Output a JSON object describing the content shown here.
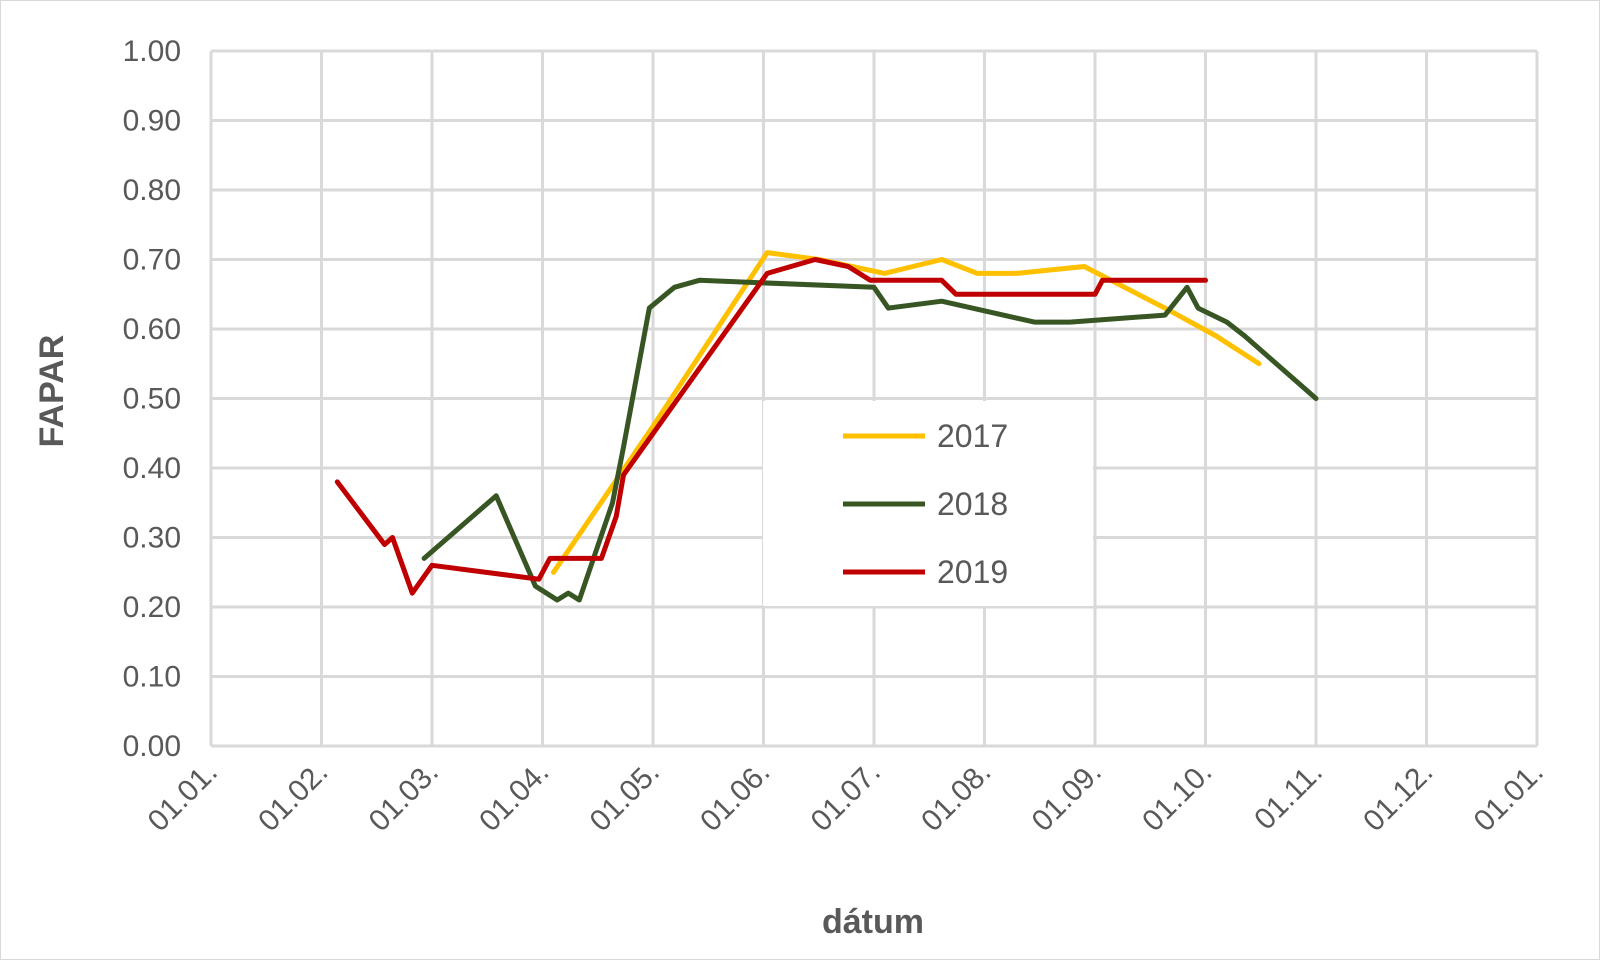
{
  "chart_data": {
    "type": "line",
    "xlabel": "dátum",
    "ylabel": "FAPAR",
    "ylim": [
      0,
      1
    ],
    "yticks": [
      "0.00",
      "0.10",
      "0.20",
      "0.30",
      "0.40",
      "0.50",
      "0.60",
      "0.70",
      "0.80",
      "0.90",
      "1.00"
    ],
    "xlim": [
      "01.01.",
      "01.01."
    ],
    "xticks": [
      "01.01.",
      "01.02.",
      "01.03.",
      "01.04.",
      "01.05.",
      "01.06.",
      "01.07.",
      "01.08.",
      "01.09.",
      "01.10.",
      "01.11.",
      "01.12.",
      "01.01."
    ],
    "grid": true,
    "legend_position": "center",
    "series": [
      {
        "name": "2017",
        "color": "#FFC000",
        "points": [
          [
            "04.04.",
            0.25
          ],
          [
            "01.05.",
            0.46
          ],
          [
            "02.06.",
            0.71
          ],
          [
            "16.06.",
            0.7
          ],
          [
            "04.07.",
            0.68
          ],
          [
            "20.07.",
            0.7
          ],
          [
            "30.07.",
            0.68
          ],
          [
            "10.08.",
            0.68
          ],
          [
            "29.08.",
            0.69
          ],
          [
            "20.09.",
            0.63
          ],
          [
            "04.10.",
            0.59
          ],
          [
            "16.10.",
            0.55
          ]
        ]
      },
      {
        "name": "2018",
        "color": "#375623",
        "points": [
          [
            "27.02.",
            0.27
          ],
          [
            "19.03.",
            0.36
          ],
          [
            "30.03.",
            0.23
          ],
          [
            "05.04.",
            0.21
          ],
          [
            "08.04.",
            0.22
          ],
          [
            "11.04.",
            0.21
          ],
          [
            "20.04.",
            0.35
          ],
          [
            "23.04.",
            0.43
          ],
          [
            "30.04.",
            0.63
          ],
          [
            "07.05.",
            0.66
          ],
          [
            "14.05.",
            0.67
          ],
          [
            "01.07.",
            0.66
          ],
          [
            "05.07.",
            0.63
          ],
          [
            "20.07.",
            0.64
          ],
          [
            "15.08.",
            0.61
          ],
          [
            "25.08.",
            0.61
          ],
          [
            "20.09.",
            0.62
          ],
          [
            "26.09.",
            0.66
          ],
          [
            "29.09.",
            0.63
          ],
          [
            "07.10.",
            0.61
          ],
          [
            "12.10.",
            0.59
          ],
          [
            "01.11.",
            0.5
          ]
        ]
      },
      {
        "name": "2019",
        "color": "#C00000",
        "points": [
          [
            "05.02.",
            0.38
          ],
          [
            "17.02.",
            0.29
          ],
          [
            "19.02.",
            0.3
          ],
          [
            "24.02.",
            0.22
          ],
          [
            "29.02.",
            0.26
          ],
          [
            "31.03.",
            0.24
          ],
          [
            "03.04.",
            0.27
          ],
          [
            "17.04.",
            0.27
          ],
          [
            "21.04.",
            0.33
          ],
          [
            "23.04.",
            0.39
          ],
          [
            "02.06.",
            0.68
          ],
          [
            "15.06.",
            0.7
          ],
          [
            "24.06.",
            0.69
          ],
          [
            "30.06.",
            0.67
          ],
          [
            "20.07.",
            0.67
          ],
          [
            "24.07.",
            0.65
          ],
          [
            "01.09.",
            0.65
          ],
          [
            "03.09.",
            0.67
          ],
          [
            "01.10.",
            0.67
          ]
        ]
      }
    ]
  }
}
